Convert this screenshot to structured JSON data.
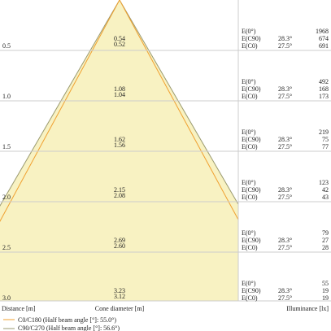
{
  "rows": [
    {
      "distance": "0.5",
      "upper": "0.54",
      "lower": "0.52",
      "e0_label": "E(0°)",
      "e0": "1968",
      "c90_label": "E(C90)",
      "c90_angle": "28.3°",
      "c90": "674",
      "c0_label": "E(C0)",
      "c0_angle": "27.5°",
      "c0": "691"
    },
    {
      "distance": "1.0",
      "upper": "1.08",
      "lower": "1.04",
      "e0_label": "E(0°)",
      "e0": "492",
      "c90_label": "E(C90)",
      "c90_angle": "28.3°",
      "c90": "168",
      "c0_label": "E(C0)",
      "c0_angle": "27.5°",
      "c0": "173"
    },
    {
      "distance": "1.5",
      "upper": "1.62",
      "lower": "1.56",
      "e0_label": "E(0°)",
      "e0": "219",
      "c90_label": "E(C90)",
      "c90_angle": "28.3°",
      "c90": "75",
      "c0_label": "E(C0)",
      "c0_angle": "27.5°",
      "c0": "77"
    },
    {
      "distance": "2.0",
      "upper": "2.15",
      "lower": "2.08",
      "e0_label": "E(0°)",
      "e0": "123",
      "c90_label": "E(C90)",
      "c90_angle": "28.3°",
      "c90": "42",
      "c0_label": "E(C0)",
      "c0_angle": "27.5°",
      "c0": "43"
    },
    {
      "distance": "2.5",
      "upper": "2.69",
      "lower": "2.60",
      "e0_label": "E(0°)",
      "e0": "79",
      "c90_label": "E(C90)",
      "c90_angle": "28.3°",
      "c90": "27",
      "c0_label": "E(C0)",
      "c0_angle": "27.5°",
      "c0": "28"
    },
    {
      "distance": "3.0",
      "upper": "3.23",
      "lower": "3.12",
      "e0_label": "E(0°)",
      "e0": "55",
      "c90_label": "E(C90)",
      "c90_angle": "28.3°",
      "c90": "19",
      "c0_label": "E(C0)",
      "c0_angle": "27.5°",
      "c0": "19"
    }
  ],
  "footer": {
    "distance": "Distance [m]",
    "diameter": "Cone diameter [m]",
    "illuminance": "Illuminance [lx]"
  },
  "legend": [
    "C0/C180 (Half beam angle [°]: 55.0°)",
    "C90/C270 (Half beam angle [°]: 56.6°)"
  ]
}
